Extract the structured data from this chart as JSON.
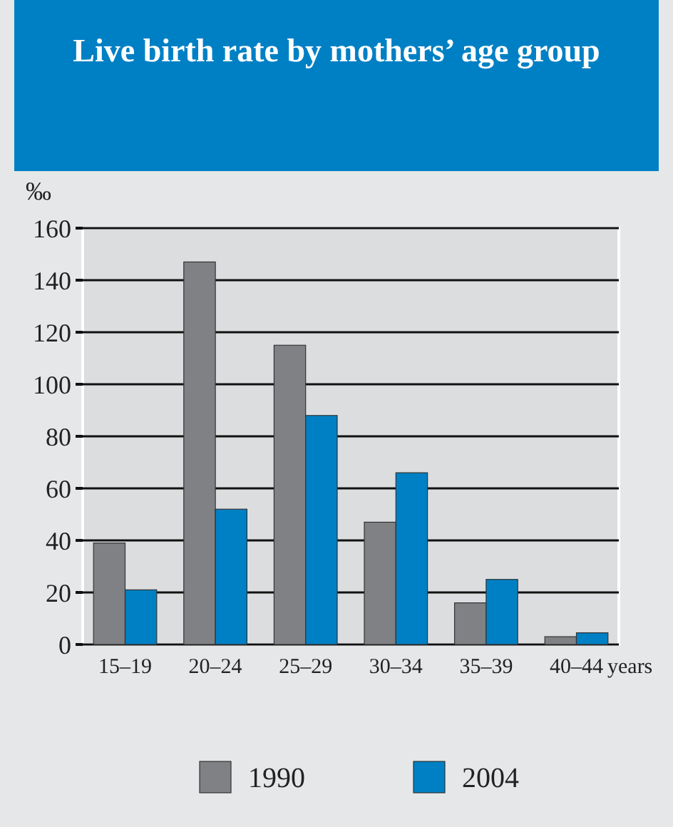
{
  "chart_data": {
    "type": "bar",
    "title": "Live birth rate by mothers’ age group",
    "ylabel": "‰",
    "xlabel": "years",
    "categories": [
      "15–19",
      "20–24",
      "25–29",
      "30–34",
      "35–39",
      "40–44"
    ],
    "series": [
      {
        "name": "1990",
        "color": "#808184",
        "values": [
          39,
          147,
          115,
          47,
          16,
          3
        ]
      },
      {
        "name": "2004",
        "color": "#0080c4",
        "values": [
          21,
          52,
          88,
          66,
          25,
          4.5
        ]
      }
    ],
    "ylim": [
      0,
      160
    ],
    "yticks": [
      0,
      20,
      40,
      60,
      80,
      100,
      120,
      140,
      160
    ],
    "grid": "y",
    "legend": "bottom"
  }
}
